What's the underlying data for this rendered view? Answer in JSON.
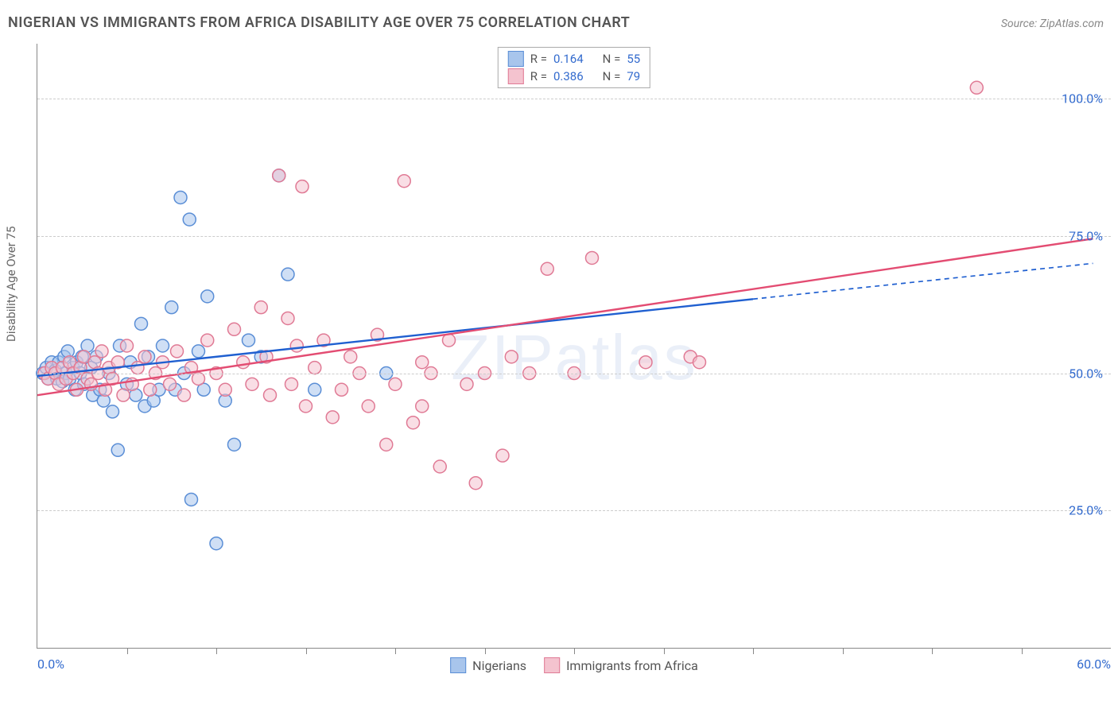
{
  "title": "NIGERIAN VS IMMIGRANTS FROM AFRICA DISABILITY AGE OVER 75 CORRELATION CHART",
  "source": "Source: ZipAtlas.com",
  "watermark": "ZIPatlas",
  "ylabel": "Disability Age Over 75",
  "chart": {
    "type": "scatter",
    "xlim": [
      0,
      60
    ],
    "ylim": [
      0,
      110
    ],
    "xlabel_min": "0.0%",
    "xlabel_max": "60.0%",
    "ytick_values": [
      25,
      50,
      75,
      100
    ],
    "ytick_labels": [
      "25.0%",
      "50.0%",
      "75.0%",
      "100.0%"
    ],
    "xtick_positions": [
      5,
      10,
      15,
      20,
      25,
      30,
      35,
      40,
      45,
      50,
      55
    ],
    "marker_radius": 8,
    "marker_opacity": 0.55,
    "marker_stroke_width": 1.5,
    "background_color": "#ffffff",
    "grid_color": "#cccccc",
    "axis_color": "#888888",
    "series": [
      {
        "name": "Nigerians",
        "color_fill": "#a8c5ec",
        "color_stroke": "#5a8ed6",
        "r": "0.164",
        "n": "55",
        "regression": {
          "solid": {
            "x1": 0,
            "y1": 49.5,
            "x2": 40,
            "y2": 63.5
          },
          "dashed": {
            "x1": 40,
            "y1": 63.5,
            "x2": 59,
            "y2": 70.0
          },
          "color": "#1f5fd0",
          "width": 2.4
        },
        "points": [
          [
            0.3,
            50
          ],
          [
            0.5,
            51
          ],
          [
            0.6,
            49
          ],
          [
            0.8,
            52
          ],
          [
            1.0,
            50.5
          ],
          [
            1.1,
            49
          ],
          [
            1.2,
            52
          ],
          [
            1.4,
            48.5
          ],
          [
            1.5,
            53
          ],
          [
            1.6,
            50
          ],
          [
            1.7,
            54
          ],
          [
            1.8,
            49
          ],
          [
            2.0,
            51
          ],
          [
            2.1,
            47
          ],
          [
            2.2,
            52
          ],
          [
            2.4,
            50
          ],
          [
            2.5,
            53
          ],
          [
            2.6,
            48
          ],
          [
            2.8,
            55
          ],
          [
            3.0,
            51
          ],
          [
            3.1,
            46
          ],
          [
            3.3,
            53
          ],
          [
            3.5,
            47
          ],
          [
            3.7,
            45
          ],
          [
            4.0,
            50
          ],
          [
            4.2,
            43
          ],
          [
            4.5,
            36
          ],
          [
            4.6,
            55
          ],
          [
            5.0,
            48
          ],
          [
            5.2,
            52
          ],
          [
            5.5,
            46
          ],
          [
            5.8,
            59
          ],
          [
            6.0,
            44
          ],
          [
            6.2,
            53
          ],
          [
            6.5,
            45
          ],
          [
            6.8,
            47
          ],
          [
            7.0,
            55
          ],
          [
            7.5,
            62
          ],
          [
            7.7,
            47
          ],
          [
            8.0,
            82
          ],
          [
            8.2,
            50
          ],
          [
            8.5,
            78
          ],
          [
            8.6,
            27
          ],
          [
            9.0,
            54
          ],
          [
            9.3,
            47
          ],
          [
            9.5,
            64
          ],
          [
            10.0,
            19
          ],
          [
            10.5,
            45
          ],
          [
            11.0,
            37
          ],
          [
            11.8,
            56
          ],
          [
            12.5,
            53
          ],
          [
            13.5,
            86
          ],
          [
            14.0,
            68
          ],
          [
            15.5,
            47
          ],
          [
            19.5,
            50
          ]
        ]
      },
      {
        "name": "Immigrants from Africa",
        "color_fill": "#f4c3cf",
        "color_stroke": "#e07a95",
        "r": "0.386",
        "n": "79",
        "regression": {
          "solid": {
            "x1": 0,
            "y1": 46.0,
            "x2": 59,
            "y2": 74.5
          },
          "dashed": null,
          "color": "#e34c72",
          "width": 2.4
        },
        "points": [
          [
            0.4,
            50
          ],
          [
            0.6,
            49
          ],
          [
            0.8,
            51
          ],
          [
            1.0,
            50
          ],
          [
            1.2,
            48
          ],
          [
            1.4,
            51
          ],
          [
            1.6,
            49
          ],
          [
            1.8,
            52
          ],
          [
            2.0,
            50
          ],
          [
            2.2,
            47
          ],
          [
            2.4,
            51
          ],
          [
            2.6,
            53
          ],
          [
            2.8,
            49
          ],
          [
            3.0,
            48
          ],
          [
            3.2,
            52
          ],
          [
            3.4,
            50
          ],
          [
            3.6,
            54
          ],
          [
            3.8,
            47
          ],
          [
            4.0,
            51
          ],
          [
            4.2,
            49
          ],
          [
            4.5,
            52
          ],
          [
            4.8,
            46
          ],
          [
            5.0,
            55
          ],
          [
            5.3,
            48
          ],
          [
            5.6,
            51
          ],
          [
            6.0,
            53
          ],
          [
            6.3,
            47
          ],
          [
            6.6,
            50
          ],
          [
            7.0,
            52
          ],
          [
            7.4,
            48
          ],
          [
            7.8,
            54
          ],
          [
            8.2,
            46
          ],
          [
            8.6,
            51
          ],
          [
            9.0,
            49
          ],
          [
            9.5,
            56
          ],
          [
            10.0,
            50
          ],
          [
            10.5,
            47
          ],
          [
            11.0,
            58
          ],
          [
            11.5,
            52
          ],
          [
            12.0,
            48
          ],
          [
            12.5,
            62
          ],
          [
            12.8,
            53
          ],
          [
            13.0,
            46
          ],
          [
            13.5,
            86
          ],
          [
            14.0,
            60
          ],
          [
            14.5,
            55
          ],
          [
            14.8,
            84
          ],
          [
            15.0,
            44
          ],
          [
            15.5,
            51
          ],
          [
            16.0,
            56
          ],
          [
            16.5,
            42
          ],
          [
            17.0,
            47
          ],
          [
            17.5,
            53
          ],
          [
            18.0,
            50
          ],
          [
            18.5,
            44
          ],
          [
            19.0,
            57
          ],
          [
            19.5,
            37
          ],
          [
            20.0,
            48
          ],
          [
            20.5,
            85
          ],
          [
            21.0,
            41
          ],
          [
            21.5,
            52
          ],
          [
            22.0,
            50
          ],
          [
            22.5,
            33
          ],
          [
            23.0,
            56
          ],
          [
            24.0,
            48
          ],
          [
            24.5,
            30
          ],
          [
            25.0,
            50
          ],
          [
            26.0,
            35
          ],
          [
            26.5,
            53
          ],
          [
            27.5,
            50
          ],
          [
            28.5,
            69
          ],
          [
            30.0,
            50
          ],
          [
            31.0,
            71
          ],
          [
            34.0,
            52
          ],
          [
            36.5,
            53
          ],
          [
            37.0,
            52
          ],
          [
            52.5,
            102
          ],
          [
            21.5,
            44
          ],
          [
            14.2,
            48
          ]
        ]
      }
    ]
  },
  "legend_top": {
    "r_label": "R =",
    "n_label": "N ="
  },
  "legend_bottom": {
    "label1": "Nigerians",
    "label2": "Immigrants from Africa"
  }
}
